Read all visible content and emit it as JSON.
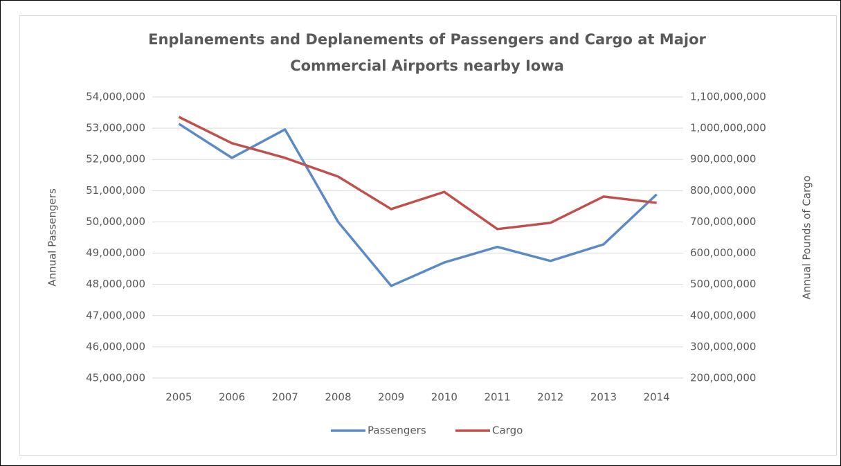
{
  "chart_data": {
    "type": "line",
    "title": "Enplanements and Deplanements of Passengers and Cargo at Major Commercial Airports nearby Iowa",
    "categories": [
      "2005",
      "2006",
      "2007",
      "2008",
      "2009",
      "2010",
      "2011",
      "2012",
      "2013",
      "2014"
    ],
    "ylabel": "Annual Passengers",
    "y2label": "Annual Pounds of Cargo",
    "series": [
      {
        "name": "Passengers",
        "color": "#5b8ac6",
        "values": [
          53140000,
          52050000,
          52960000,
          50000000,
          47950000,
          48700000,
          49200000,
          48750000,
          49280000,
          50880000
        ]
      },
      {
        "name": "Cargo",
        "color": "#c0504d",
        "axis": "y2",
        "values": [
          1036000000,
          952000000,
          905000000,
          845000000,
          741000000,
          796000000,
          677000000,
          697000000,
          781000000,
          761000000
        ]
      }
    ],
    "ylim": [
      45000000,
      54000000
    ],
    "yticks": [
      {
        "value": 45000000,
        "label": "45,000,000"
      },
      {
        "value": 46000000,
        "label": "46,000,000"
      },
      {
        "value": 47000000,
        "label": "47,000,000"
      },
      {
        "value": 48000000,
        "label": "48,000,000"
      },
      {
        "value": 49000000,
        "label": "49,000,000"
      },
      {
        "value": 50000000,
        "label": "50,000,000"
      },
      {
        "value": 51000000,
        "label": "51,000,000"
      },
      {
        "value": 52000000,
        "label": "52,000,000"
      },
      {
        "value": 53000000,
        "label": "53,000,000"
      },
      {
        "value": 54000000,
        "label": "54,000,000"
      }
    ],
    "y2lim": [
      200000000,
      1100000000
    ],
    "y2ticks": [
      {
        "value": 200000000,
        "label": "200,000,000"
      },
      {
        "value": 300000000,
        "label": "300,000,000"
      },
      {
        "value": 400000000,
        "label": "400,000,000"
      },
      {
        "value": 500000000,
        "label": "500,000,000"
      },
      {
        "value": 600000000,
        "label": "600,000,000"
      },
      {
        "value": 700000000,
        "label": "700,000,000"
      },
      {
        "value": 800000000,
        "label": "800,000,000"
      },
      {
        "value": 900000000,
        "label": "900,000,000"
      },
      {
        "value": 1000000000,
        "label": "1,000,000,000"
      },
      {
        "value": 1100000000,
        "label": "1,100,000,000"
      }
    ],
    "grid": true,
    "legend": "bottom"
  }
}
